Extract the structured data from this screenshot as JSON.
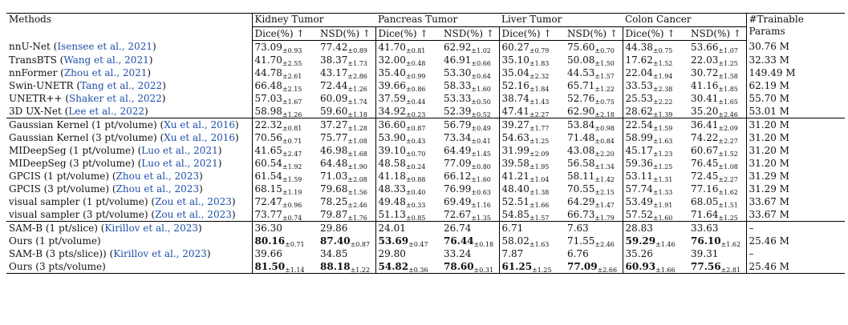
{
  "header": {
    "methods": "Methods",
    "tasks": [
      "Kidney Tumor",
      "Pancreas Tumor",
      "Liver Tumor",
      "Colon Cancer"
    ],
    "metrics": [
      "Dice(%) ↑",
      "NSD(%) ↑"
    ],
    "params_line1": "#Trainable",
    "params_line2": "Params"
  },
  "groups": [
    {
      "rows": [
        {
          "name": "nnU-Net",
          "cite": "Isensee et al., 2021",
          "params": "30.76 M",
          "cells": [
            {
              "v": "73.09",
              "pm": "±0.93"
            },
            {
              "v": "77.42",
              "pm": "±0.89"
            },
            {
              "v": "41.70",
              "pm": "±0.81"
            },
            {
              "v": "62.92",
              "pm": "±1.02"
            },
            {
              "v": "60.27",
              "pm": "±0.79"
            },
            {
              "v": "75.60",
              "pm": "±0.70"
            },
            {
              "v": "44.38",
              "pm": "±0.75"
            },
            {
              "v": "53.66",
              "pm": "±1.07"
            }
          ]
        },
        {
          "name": "TransBTS",
          "cite": "Wang et al., 2021",
          "params": "32.33 M",
          "cells": [
            {
              "v": "41.70",
              "pm": "±2.55"
            },
            {
              "v": "38.37",
              "pm": "±1.73"
            },
            {
              "v": "32.00",
              "pm": "±0.48"
            },
            {
              "v": "46.91",
              "pm": "±0.66"
            },
            {
              "v": "35.10",
              "pm": "±1.83"
            },
            {
              "v": "50.08",
              "pm": "±1.50"
            },
            {
              "v": "17.62",
              "pm": "±1.52"
            },
            {
              "v": "22.03",
              "pm": "±1.25"
            }
          ]
        },
        {
          "name": "nnFormer",
          "cite": "Zhou et al., 2021",
          "params": "149.49 M",
          "cells": [
            {
              "v": "44.78",
              "pm": "±2.61"
            },
            {
              "v": "43.17",
              "pm": "±2.86"
            },
            {
              "v": "35.40",
              "pm": "±0.99"
            },
            {
              "v": "53.30",
              "pm": "±0.64"
            },
            {
              "v": "35.04",
              "pm": "±2.32"
            },
            {
              "v": "44.53",
              "pm": "±1.57"
            },
            {
              "v": "22.04",
              "pm": "±1.94"
            },
            {
              "v": "30.72",
              "pm": "±1.58"
            }
          ]
        },
        {
          "name": "Swin-UNETR",
          "cite": "Tang et al., 2022",
          "params": "62.19 M",
          "cells": [
            {
              "v": "66.48",
              "pm": "±2.15"
            },
            {
              "v": "72.44",
              "pm": "±1.26"
            },
            {
              "v": "39.66",
              "pm": "±0.86"
            },
            {
              "v": "58.33",
              "pm": "±1.60"
            },
            {
              "v": "52.16",
              "pm": "±1.84"
            },
            {
              "v": "65.71",
              "pm": "±1.22"
            },
            {
              "v": "33.53",
              "pm": "±2.38"
            },
            {
              "v": "41.16",
              "pm": "±1.85"
            }
          ]
        },
        {
          "name": "UNETR++",
          "cite": "Shaker et al., 2022",
          "params": "55.70 M",
          "cells": [
            {
              "v": "57.03",
              "pm": "±1.67"
            },
            {
              "v": "60.09",
              "pm": "±1.74"
            },
            {
              "v": "37.59",
              "pm": "±0.44"
            },
            {
              "v": "53.33",
              "pm": "±0.50"
            },
            {
              "v": "38.74",
              "pm": "±1.43"
            },
            {
              "v": "52.76",
              "pm": "±0.75"
            },
            {
              "v": "25.53",
              "pm": "±2.22"
            },
            {
              "v": "30.41",
              "pm": "±1.65"
            }
          ]
        },
        {
          "name": "3D UX-Net",
          "cite": "Lee et al., 2022",
          "params": "53.01 M",
          "cells": [
            {
              "v": "58.98",
              "pm": "±1.26"
            },
            {
              "v": "59.60",
              "pm": "±1.18"
            },
            {
              "v": "34.92",
              "pm": "±0.23"
            },
            {
              "v": "52.39",
              "pm": "±0.52"
            },
            {
              "v": "47.41",
              "pm": "±2.27"
            },
            {
              "v": "62.90",
              "pm": "±2.18"
            },
            {
              "v": "28.62",
              "pm": "±1.39"
            },
            {
              "v": "35.20",
              "pm": "±2.46"
            }
          ]
        }
      ]
    },
    {
      "rows": [
        {
          "name": "Gaussian Kernel (1 pt/volume)",
          "cite": "Xu et al., 2016",
          "params": "31.20 M",
          "cells": [
            {
              "v": "22.32",
              "pm": "±0.81"
            },
            {
              "v": "37.27",
              "pm": "±1.28"
            },
            {
              "v": "36.60",
              "pm": "±0.87"
            },
            {
              "v": "56.79",
              "pm": "±0.49"
            },
            {
              "v": "39.27",
              "pm": "±1.77"
            },
            {
              "v": "53.84",
              "pm": "±0.98"
            },
            {
              "v": "22.54",
              "pm": "±1.59"
            },
            {
              "v": "36.41",
              "pm": "±2.09"
            }
          ]
        },
        {
          "name": "Gaussian Kernel (3 pt/volume)",
          "cite": "Xu et al., 2016",
          "params": "31.20 M",
          "cells": [
            {
              "v": "70.56",
              "pm": "±0.71"
            },
            {
              "v": "75.77",
              "pm": "±1.08"
            },
            {
              "v": "53.90",
              "pm": "±0.43"
            },
            {
              "v": "73.34",
              "pm": "±0.41"
            },
            {
              "v": "54.63",
              "pm": "±1.25"
            },
            {
              "v": "71.48",
              "pm": "±0.84"
            },
            {
              "v": "58.99",
              "pm": "±1.63"
            },
            {
              "v": "74.22",
              "pm": "±2.27"
            }
          ]
        },
        {
          "name": "MIDeepSeg (1 pt/volume)",
          "cite": "Luo et al., 2021",
          "params": "31.20 M",
          "cells": [
            {
              "v": "41.65",
              "pm": "±2.47"
            },
            {
              "v": "46.98",
              "pm": "±1.68"
            },
            {
              "v": "39.10",
              "pm": "±0.70"
            },
            {
              "v": "64.49",
              "pm": "±1.45"
            },
            {
              "v": "31.99",
              "pm": "±2.09"
            },
            {
              "v": "43.08",
              "pm": "±2.20"
            },
            {
              "v": "45.17",
              "pm": "±1.23"
            },
            {
              "v": "60.67",
              "pm": "±1.52"
            }
          ]
        },
        {
          "name": "MIDeepSeg (3 pt/volume)",
          "cite": "Luo et al., 2021",
          "params": "31.20 M",
          "cells": [
            {
              "v": "60.54",
              "pm": "±1.92"
            },
            {
              "v": "64.48",
              "pm": "±1.90"
            },
            {
              "v": "48.58",
              "pm": "±0.24"
            },
            {
              "v": "77.09",
              "pm": "±0.80"
            },
            {
              "v": "39.58",
              "pm": "±1.95"
            },
            {
              "v": "56.58",
              "pm": "±1.34"
            },
            {
              "v": "59.36",
              "pm": "±1.25"
            },
            {
              "v": "76.45",
              "pm": "±1.08"
            }
          ]
        },
        {
          "name": "GPCIS (1 pt/volume)",
          "cite": "Zhou et al., 2023",
          "params": "31.29 M",
          "cells": [
            {
              "v": "61.54",
              "pm": "±1.59"
            },
            {
              "v": "71.03",
              "pm": "±2.08"
            },
            {
              "v": "41.18",
              "pm": "±0.88"
            },
            {
              "v": "66.12",
              "pm": "±1.60"
            },
            {
              "v": "41.21",
              "pm": "±1.04"
            },
            {
              "v": "58.11",
              "pm": "±1.42"
            },
            {
              "v": "53.11",
              "pm": "±1.31"
            },
            {
              "v": "72.45",
              "pm": "±2.27"
            }
          ]
        },
        {
          "name": "GPCIS (3 pt/volume)",
          "cite": "Zhou et al., 2023",
          "params": "31.29 M",
          "cells": [
            {
              "v": "68.15",
              "pm": "±1.19"
            },
            {
              "v": "79.68",
              "pm": "±1.56"
            },
            {
              "v": "48.33",
              "pm": "±0.40"
            },
            {
              "v": "76.99",
              "pm": "±0.63"
            },
            {
              "v": "48.40",
              "pm": "±1.38"
            },
            {
              "v": "70.55",
              "pm": "±2.15"
            },
            {
              "v": "57.74",
              "pm": "±1.33"
            },
            {
              "v": "77.16",
              "pm": "±1.62"
            }
          ]
        },
        {
          "name": "visual sampler (1 pt/volume)",
          "cite": "Zou et al., 2023",
          "params": "33.67 M",
          "cells": [
            {
              "v": "72.47",
              "pm": "±0.96"
            },
            {
              "v": "78.25",
              "pm": "±2.46"
            },
            {
              "v": "49.48",
              "pm": "±0.33"
            },
            {
              "v": "69.49",
              "pm": "±1.16"
            },
            {
              "v": "52.51",
              "pm": "±1.66"
            },
            {
              "v": "64.29",
              "pm": "±1.47"
            },
            {
              "v": "53.49",
              "pm": "±1.91"
            },
            {
              "v": "68.05",
              "pm": "±1.51"
            }
          ]
        },
        {
          "name": "visual sampler (3 pt/volume)",
          "cite": "Zou et al., 2023",
          "params": "33.67 M",
          "cells": [
            {
              "v": "73.77",
              "pm": "±0.74"
            },
            {
              "v": "79.87",
              "pm": "±1.76"
            },
            {
              "v": "51.13",
              "pm": "±0.85"
            },
            {
              "v": "72.67",
              "pm": "±1.35"
            },
            {
              "v": "54.85",
              "pm": "±1.57"
            },
            {
              "v": "66.73",
              "pm": "±1.79"
            },
            {
              "v": "57.52",
              "pm": "±1.60"
            },
            {
              "v": "71.64",
              "pm": "±1.25"
            }
          ]
        }
      ]
    },
    {
      "rows": [
        {
          "name": "SAM-B (1 pt/slice)",
          "cite": "Kirillov et al., 2023",
          "params": "–",
          "cells": [
            {
              "v": "36.30"
            },
            {
              "v": "29.86"
            },
            {
              "v": "24.01"
            },
            {
              "v": "26.74"
            },
            {
              "v": "6.71"
            },
            {
              "v": "7.63"
            },
            {
              "v": "28.83"
            },
            {
              "v": "33.63"
            }
          ]
        },
        {
          "name": "Ours (1 pt/volume)",
          "cite": "",
          "params": "25.46 M",
          "cells": [
            {
              "v": "80.16",
              "pm": "±0.71",
              "b": true
            },
            {
              "v": "87.40",
              "pm": "±0.87",
              "b": true
            },
            {
              "v": "53.69",
              "pm": "±0.47",
              "b": true
            },
            {
              "v": "76.44",
              "pm": "±0.18",
              "b": true
            },
            {
              "v": "58.02",
              "pm": "±1.63"
            },
            {
              "v": "71.55",
              "pm": "±2.46"
            },
            {
              "v": "59.29",
              "pm": "±1.46",
              "b": true
            },
            {
              "v": "76.10",
              "pm": "±1.62",
              "b": true
            }
          ]
        },
        {
          "name": "SAM-B (3 pts/slice))",
          "cite": "Kirillov et al., 2023",
          "params": "–",
          "cells": [
            {
              "v": "39.66"
            },
            {
              "v": "34.85"
            },
            {
              "v": "29.80"
            },
            {
              "v": "33.24"
            },
            {
              "v": "7.87"
            },
            {
              "v": "6.76"
            },
            {
              "v": "35.26"
            },
            {
              "v": "39.31"
            }
          ]
        },
        {
          "name": "Ours (3 pts/volume)",
          "cite": "",
          "params": "25.46 M",
          "cells": [
            {
              "v": "81.50",
              "pm": "±1.14",
              "b": true
            },
            {
              "v": "88.18",
              "pm": "±1.22",
              "b": true
            },
            {
              "v": "54.82",
              "pm": "±0.36",
              "b": true
            },
            {
              "v": "78.60",
              "pm": "±0.31",
              "b": true
            },
            {
              "v": "61.25",
              "pm": "±1.25",
              "b": true
            },
            {
              "v": "77.09",
              "pm": "±2.66",
              "b": true
            },
            {
              "v": "60.93",
              "pm": "±1.66",
              "b": true
            },
            {
              "v": "77.56",
              "pm": "±2.81",
              "b": true
            }
          ]
        }
      ]
    }
  ]
}
